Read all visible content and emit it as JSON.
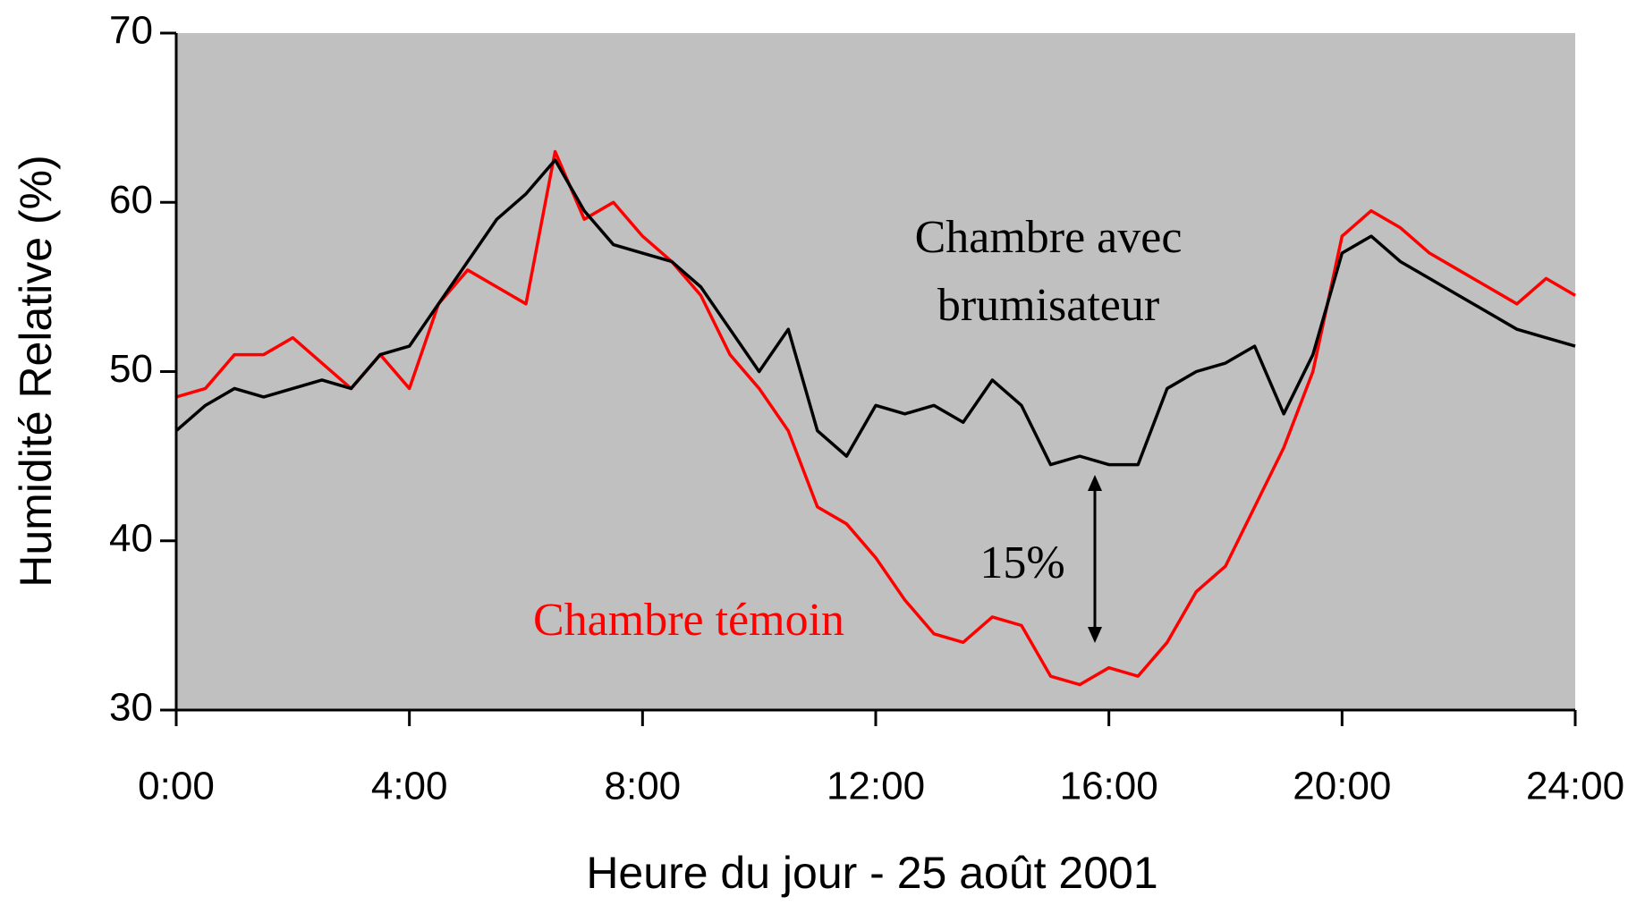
{
  "chart_data": {
    "type": "line",
    "xlabel": "Heure du jour - 25 août 2001",
    "ylabel": "Humidité Relative (%)",
    "x": [
      0,
      0.5,
      1,
      1.5,
      2,
      2.5,
      3,
      3.5,
      4,
      4.5,
      5,
      5.5,
      6,
      6.5,
      7,
      7.5,
      8,
      8.5,
      9,
      9.5,
      10,
      10.5,
      11,
      11.5,
      12,
      12.5,
      13,
      13.5,
      14,
      14.5,
      15,
      15.5,
      16,
      16.5,
      17,
      17.5,
      18,
      18.5,
      19,
      19.5,
      20,
      20.5,
      21,
      21.5,
      22,
      22.5,
      23,
      23.5,
      24
    ],
    "series": [
      {
        "name": "Chambre avec brumisateur",
        "color": "#000000",
        "values": [
          46.5,
          48,
          49,
          48.5,
          49,
          49.5,
          49,
          51,
          51.5,
          54,
          56.5,
          59,
          60.5,
          62.5,
          59.5,
          57.5,
          57,
          56.5,
          55,
          52.5,
          50,
          52.5,
          46.5,
          45,
          48,
          47.5,
          48,
          47,
          49.5,
          48,
          44.5,
          45,
          44.5,
          44.5,
          49,
          50,
          50.5,
          51.5,
          47.5,
          51,
          57,
          58,
          56.5,
          55.5,
          54.5,
          53.5,
          52.5,
          52,
          51.5
        ]
      },
      {
        "name": "Chambre témoin",
        "color": "#ff0000",
        "values": [
          48.5,
          49,
          51,
          51,
          52,
          50.5,
          49,
          51,
          49,
          54,
          56,
          55,
          54,
          63,
          59,
          60,
          58,
          56.5,
          54.5,
          51,
          49,
          46.5,
          42,
          41,
          39,
          36.5,
          34.5,
          34,
          35.5,
          35,
          32,
          31.5,
          32.5,
          32,
          34,
          37,
          38.5,
          42,
          45.5,
          50,
          58,
          59.5,
          58.5,
          57,
          56,
          55,
          54,
          55.5,
          54.5
        ]
      }
    ],
    "annotations": [
      "15%"
    ],
    "xlim": [
      0,
      24
    ],
    "xticks": [
      {
        "value": 0,
        "label": "0:00"
      },
      {
        "value": 4,
        "label": "4:00"
      },
      {
        "value": 8,
        "label": "8:00"
      },
      {
        "value": 12,
        "label": "12:00"
      },
      {
        "value": 16,
        "label": "16:00"
      },
      {
        "value": 20,
        "label": "20:00"
      },
      {
        "value": 24,
        "label": "24:00"
      }
    ],
    "ylim": [
      30,
      70
    ],
    "yticks": [
      30,
      40,
      50,
      60,
      70
    ],
    "background": "#c0c0c0"
  }
}
